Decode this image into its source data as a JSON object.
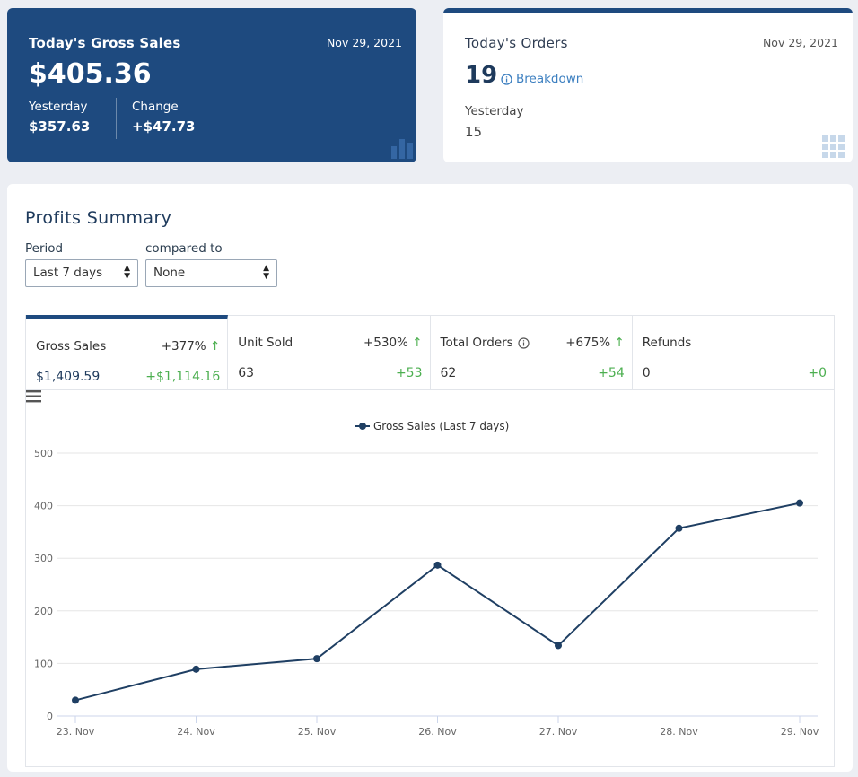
{
  "gross_sales_card": {
    "title": "Today's Gross Sales",
    "date": "Nov 29, 2021",
    "amount": "$405.36",
    "yesterday_label": "Yesterday",
    "yesterday_value": "$357.63",
    "change_label": "Change",
    "change_value": "+$47.73"
  },
  "orders_card": {
    "title": "Today's Orders",
    "date": "Nov 29, 2021",
    "count": "19",
    "breakdown_label": "Breakdown",
    "yesterday_label": "Yesterday",
    "yesterday_value": "15"
  },
  "profits": {
    "heading": "Profits Summary",
    "period_label": "Period",
    "period_value": "Last 7 days",
    "compare_label": "compared to",
    "compare_value": "None",
    "stats": [
      {
        "name": "Gross Sales",
        "pct": "+377%",
        "value": "$1,409.59",
        "diff": "+$1,114.16"
      },
      {
        "name": "Unit Sold",
        "pct": "+530%",
        "value": "63",
        "diff": "+53"
      },
      {
        "name": "Total Orders",
        "pct": "+675%",
        "value": "62",
        "diff": "+54"
      },
      {
        "name": "Refunds",
        "pct": "",
        "value": "0",
        "diff": "+0"
      }
    ]
  },
  "colors": {
    "primary": "#1e4a7f",
    "positive": "#4caf50",
    "line": "#1f3f63"
  },
  "chart_data": {
    "type": "line",
    "categories": [
      "23. Nov",
      "24. Nov",
      "25. Nov",
      "26. Nov",
      "27. Nov",
      "28. Nov",
      "29. Nov"
    ],
    "series": [
      {
        "name": "Gross Sales (Last 7 days)",
        "values": [
          30,
          89,
          109,
          287,
          134,
          357,
          405
        ]
      }
    ],
    "yticks": [
      0,
      100,
      200,
      300,
      400,
      500
    ],
    "ylim": [
      0,
      500
    ],
    "grid": true,
    "legend": "top-center"
  }
}
